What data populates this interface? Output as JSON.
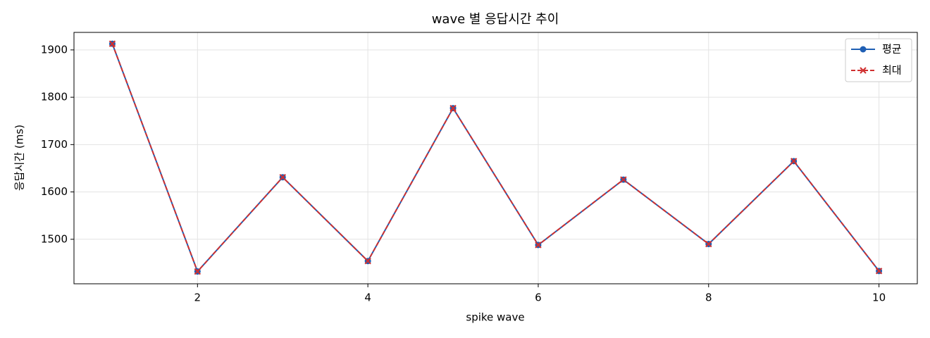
{
  "chart_data": {
    "type": "line",
    "title": "wave 별 응답시간 추이",
    "x_label": "spike wave",
    "y_label": "응답시간 (ms)",
    "x": [
      1,
      2,
      3,
      4,
      5,
      6,
      7,
      8,
      9,
      10
    ],
    "series": [
      {
        "name": "평균",
        "color": "#1f5fb4",
        "marker": "o",
        "dash": false,
        "values": [
          1913,
          1432,
          1631,
          1454,
          1777,
          1488,
          1626,
          1490,
          1665,
          1433
        ]
      },
      {
        "name": "최대",
        "color": "#d03030",
        "marker": "x",
        "dash": true,
        "values": [
          1913,
          1432,
          1631,
          1454,
          1777,
          1488,
          1626,
          1490,
          1665,
          1433
        ]
      }
    ],
    "xlim": [
      0.55,
      10.45
    ],
    "xticks": [
      2,
      4,
      6,
      8,
      10
    ],
    "ylim": [
      1406,
      1937
    ],
    "yticks": [
      1500,
      1600,
      1700,
      1800,
      1900
    ],
    "grid": true,
    "legend": "upper right"
  }
}
